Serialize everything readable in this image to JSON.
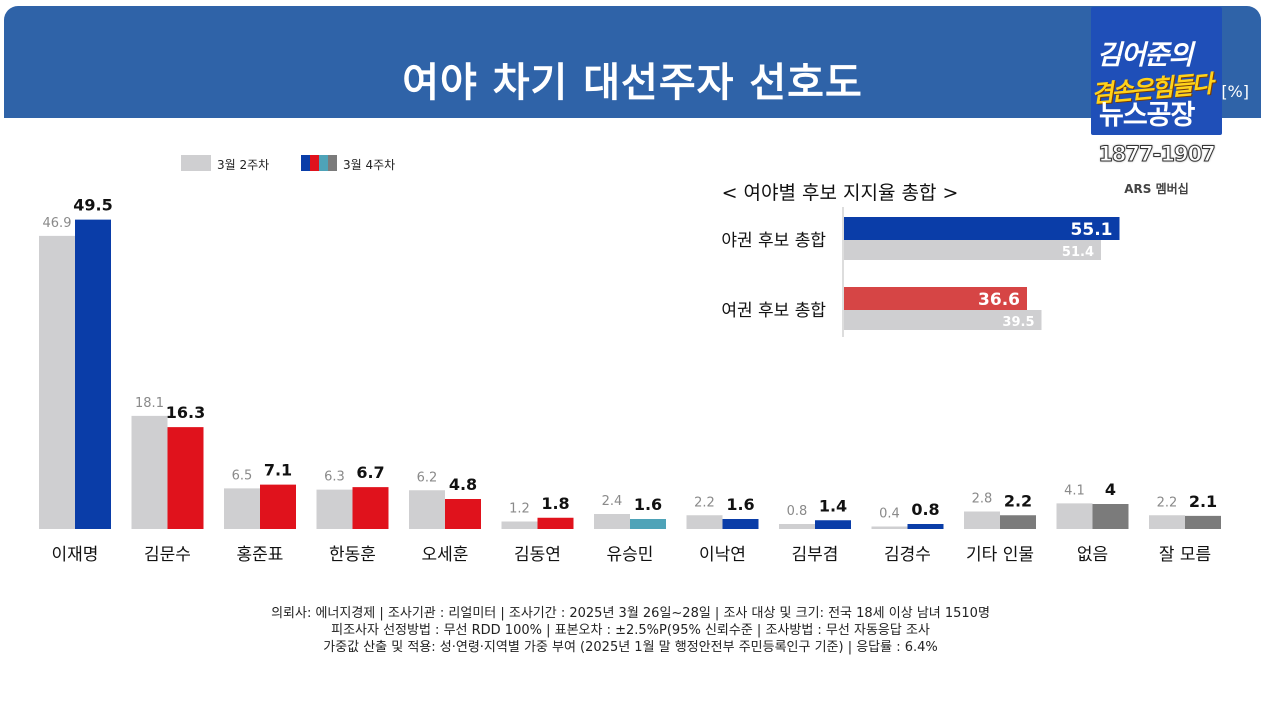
{
  "header": {
    "title": "여야 차기 대선주자 선호도",
    "unit": "[%]"
  },
  "logo": {
    "line1": "김어준의",
    "line2": "겸손은힘들다",
    "line3": "뉴스공장",
    "years": "1877-1907",
    "sub": "ARS 멤버십"
  },
  "legend": {
    "prev": "3월 2주차",
    "curr": "3월 4주차"
  },
  "colors": {
    "prev": "#cfcfd1",
    "blue": "#0a3da8",
    "red": "#e0121c",
    "teal": "#4ea3b8",
    "gray": "#7b7b7b",
    "red_soft": "#d64545",
    "banner": "#2f63a8"
  },
  "chart_data": [
    {
      "type": "bar",
      "title": "여야 차기 대선주자 선호도",
      "ylabel": "[%]",
      "ylim": [
        0,
        55
      ],
      "categories": [
        "이재명",
        "김문수",
        "홍준표",
        "한동훈",
        "오세훈",
        "김동연",
        "유승민",
        "이낙연",
        "김부겸",
        "김경수",
        "기타 인물",
        "없음",
        "잘 모름"
      ],
      "series": [
        {
          "name": "3월 2주차",
          "values": [
            46.9,
            18.1,
            6.5,
            6.3,
            6.2,
            1.2,
            2.4,
            2.2,
            0.8,
            0.4,
            2.8,
            4.1,
            2.2
          ]
        },
        {
          "name": "3월 4주차",
          "values": [
            49.5,
            16.3,
            7.1,
            6.7,
            4.8,
            1.8,
            1.6,
            1.6,
            1.4,
            0.8,
            2.2,
            4.0,
            2.1
          ],
          "colors": [
            "blue",
            "red",
            "red",
            "red",
            "red",
            "red",
            "teal",
            "blue",
            "blue",
            "blue",
            "gray",
            "gray",
            "gray"
          ]
        }
      ]
    },
    {
      "type": "bar",
      "orientation": "horizontal",
      "title": "< 여야별 후보 지지율 총합 >",
      "xlim": [
        0,
        60
      ],
      "categories": [
        "야권 후보 총합",
        "여권 후보 총합"
      ],
      "series": [
        {
          "name": "3월 4주차",
          "values": [
            55.1,
            36.6
          ],
          "colors": [
            "blue",
            "red_soft"
          ]
        },
        {
          "name": "3월 2주차",
          "values": [
            51.4,
            39.5
          ]
        }
      ]
    }
  ],
  "footer": {
    "line1": "의뢰사: 에너지경제 | 조사기관 : 리얼미터  |  조사기간 : 2025년 3월 26일~28일 | 조사 대상 및 크기: 전국 18세 이상 남녀 1510명",
    "line2": "피조사자 선정방법 : 무선 RDD 100% | 표본오차 : ±2.5%P(95% 신뢰수준 | 조사방법 : 무선 자동응답 조사",
    "line3": "가중값 산출 및 적용: 성·연령·지역별 가중 부여 (2025년 1월 말 행정안전부 주민등록인구 기준) | 응답률 : 6.4%"
  }
}
